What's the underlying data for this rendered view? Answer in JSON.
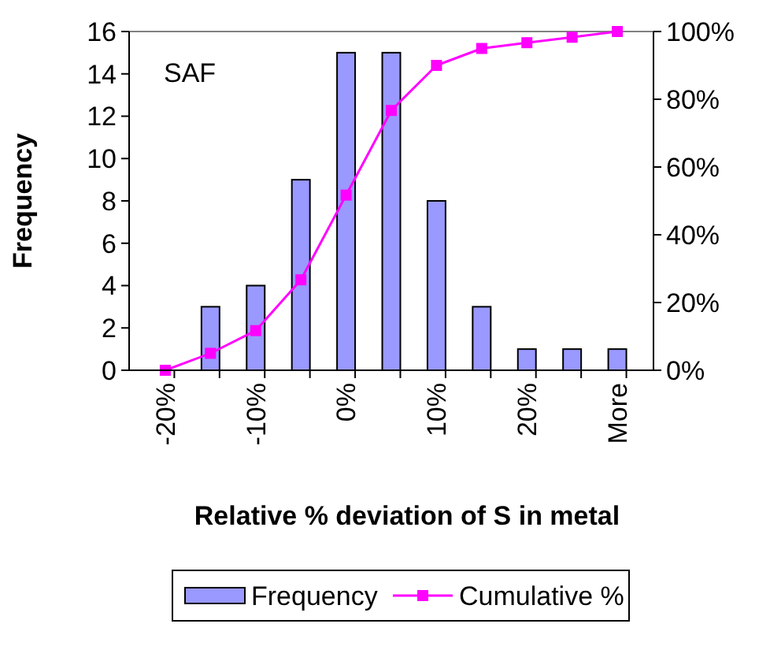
{
  "chart_data": {
    "type": "bar",
    "xlabel": "Relative % deviation of S in metal",
    "ylabel": "Frequency",
    "categories": [
      "-20%",
      null,
      "-10%",
      null,
      "0%",
      null,
      "10%",
      null,
      "20%",
      null,
      "More"
    ],
    "series": [
      {
        "name": "Frequency",
        "color": "#9999ff",
        "values": [
          0,
          3,
          4,
          9,
          15,
          15,
          8,
          3,
          1,
          1,
          1
        ]
      },
      {
        "name": "Cumulative %",
        "type": "line",
        "axis": "y2",
        "color": "#ff00ff",
        "marker": "square",
        "line_style": "solid",
        "values": [
          0,
          5,
          11.7,
          26.7,
          51.7,
          76.7,
          90,
          95,
          96.7,
          98.3,
          100
        ]
      }
    ],
    "ylim": [
      0,
      16
    ],
    "yticks": [
      0,
      2,
      4,
      6,
      8,
      10,
      12,
      14,
      16
    ],
    "y2lim": [
      0,
      100
    ],
    "y2ticks": [
      {
        "value": 0,
        "label": "0%"
      },
      {
        "value": 20,
        "label": "20%"
      },
      {
        "value": 40,
        "label": "40%"
      },
      {
        "value": 60,
        "label": "60%"
      },
      {
        "value": 80,
        "label": "80%"
      },
      {
        "value": 100,
        "label": "100%"
      }
    ],
    "annotations": [
      "SAF"
    ],
    "legend": "bottom",
    "grid": false
  }
}
